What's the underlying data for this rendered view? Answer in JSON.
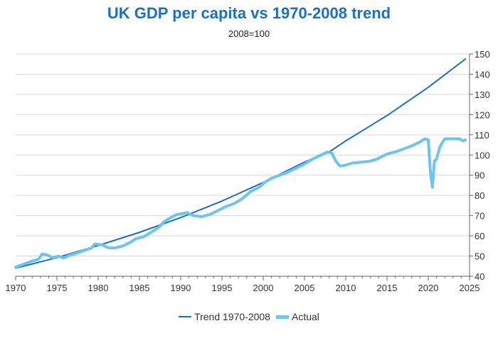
{
  "chart_data": {
    "type": "line",
    "title": "UK GDP per capita vs 1970-2008 trend",
    "subtitle": "2008=100",
    "xlim": [
      1970,
      2025
    ],
    "ylim": [
      40,
      150
    ],
    "x_ticks": [
      "1970",
      "1975",
      "1980",
      "1985",
      "1990",
      "1995",
      "2000",
      "2005",
      "2010",
      "2015",
      "2020",
      "2025"
    ],
    "y_ticks": [
      "40",
      "50",
      "60",
      "70",
      "80",
      "90",
      "100",
      "110",
      "120",
      "130",
      "140",
      "150"
    ],
    "y_axis_side": "right",
    "grid": "horizontal",
    "legend_position": "bottom",
    "colors": {
      "trend": "#1a6fc6",
      "actual": "#6cc4ef",
      "grid": "#d9d9d9",
      "title": "#1a6fc6"
    },
    "series": [
      {
        "name": "Trend 1970-2008",
        "x": [
          1970,
          1975,
          1980,
          1985,
          1990,
          1995,
          2000,
          2005,
          2008,
          2010,
          2015,
          2020,
          2024.5
        ],
        "y": [
          44,
          49.2,
          55.2,
          61.7,
          69,
          77.2,
          86.4,
          96.5,
          101.5,
          107,
          119.5,
          133.5,
          147.5
        ]
      },
      {
        "name": "Actual",
        "x": [
          1970,
          1971,
          1972,
          1972.8,
          1973.2,
          1973.8,
          1974.5,
          1975.2,
          1975.8,
          1976.5,
          1977.5,
          1978.5,
          1979.2,
          1979.6,
          1980.5,
          1981.3,
          1982,
          1983,
          1984,
          1984.5,
          1985.5,
          1986.5,
          1987.3,
          1988,
          1988.8,
          1989.5,
          1990.2,
          1990.8,
          1991.5,
          1992.5,
          1993.5,
          1994.5,
          1995.5,
          1996.5,
          1997.5,
          1998.5,
          1999.5,
          2000.2,
          2001,
          2002,
          2003,
          2004,
          2005,
          2006,
          2007,
          2007.8,
          2008.3,
          2008.8,
          2009.3,
          2010,
          2010.8,
          2012,
          2013,
          2013.8,
          2015,
          2016,
          2017,
          2018,
          2019,
          2019.6,
          2020,
          2020.25,
          2020.5,
          2020.75,
          2021,
          2021.4,
          2022,
          2023,
          2023.8,
          2024.2,
          2024.5
        ],
        "y": [
          44.5,
          46,
          47.5,
          48.5,
          51,
          50.5,
          49.2,
          50,
          49,
          50.3,
          51.5,
          53,
          54,
          56,
          55.5,
          54,
          54,
          55,
          57,
          58.5,
          59.5,
          62,
          64,
          67,
          69,
          70.5,
          71,
          71.5,
          70,
          69.5,
          70.5,
          72.5,
          74.5,
          76,
          78.5,
          82,
          84,
          86.5,
          88.5,
          90,
          91.5,
          93.5,
          95.5,
          98,
          100,
          101.5,
          101,
          97,
          94.5,
          95,
          96,
          96.5,
          97,
          98,
          100.5,
          101.5,
          103,
          104.5,
          106.5,
          108,
          107.5,
          92,
          84,
          97,
          98,
          104,
          108,
          108,
          108,
          107,
          107.5
        ]
      }
    ]
  }
}
